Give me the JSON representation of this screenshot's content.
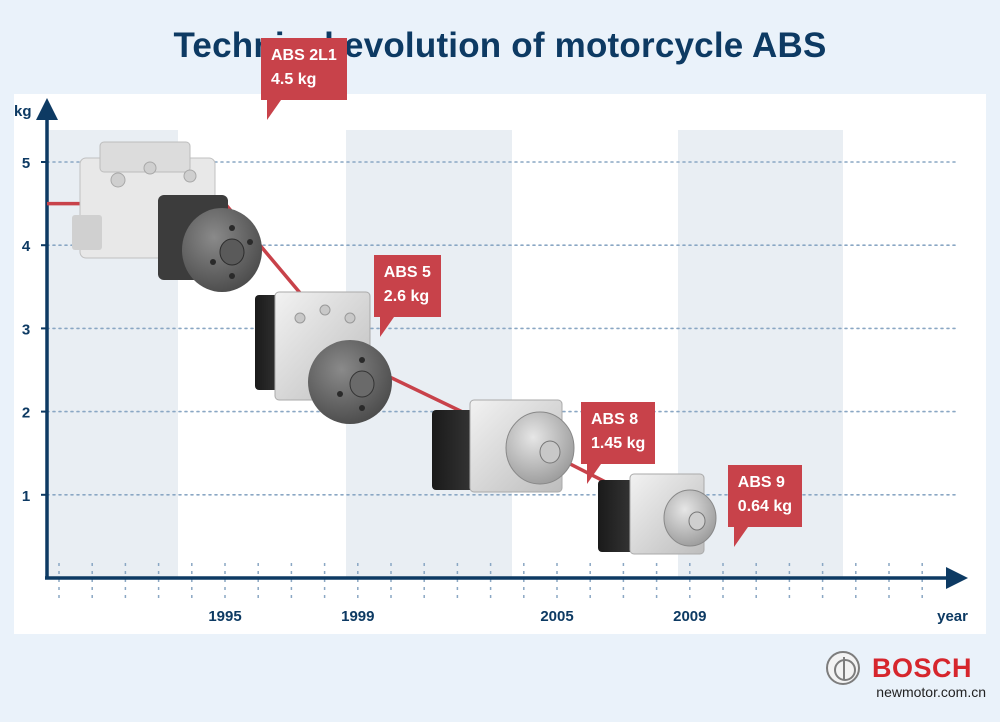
{
  "title": "Technical evolution of motorcycle ABS",
  "chart_data": {
    "type": "line",
    "ylabel": "kg",
    "xlabel": "year",
    "ylim": [
      0,
      5.5
    ],
    "y_ticks": [
      1,
      2,
      3,
      4,
      5
    ],
    "x_ticks": [
      "1995",
      "1999",
      "2005",
      "2009"
    ],
    "grid": true,
    "series": [
      {
        "color": "#c8424a",
        "points": [
          {
            "x": "1995",
            "y": 4.5,
            "label": "ABS 2L1",
            "weight": "4.5 kg"
          },
          {
            "x": "1999",
            "y": 2.6,
            "label": "ABS 5",
            "weight": "2.6 kg"
          },
          {
            "x": "2005",
            "y": 1.45,
            "label": "ABS 8",
            "weight": "1.45 kg"
          },
          {
            "x": "2009",
            "y": 0.64,
            "label": "ABS 9",
            "weight": "0.64 kg"
          }
        ]
      }
    ]
  },
  "brand": {
    "name": "BOSCH",
    "logo_icon": "bosch-armature-icon"
  },
  "watermark": "newmotor.com.cn",
  "colors": {
    "accent": "#c8424a",
    "axis": "#0d3a63",
    "title": "#0d3a63",
    "brand": "#d6262d"
  }
}
